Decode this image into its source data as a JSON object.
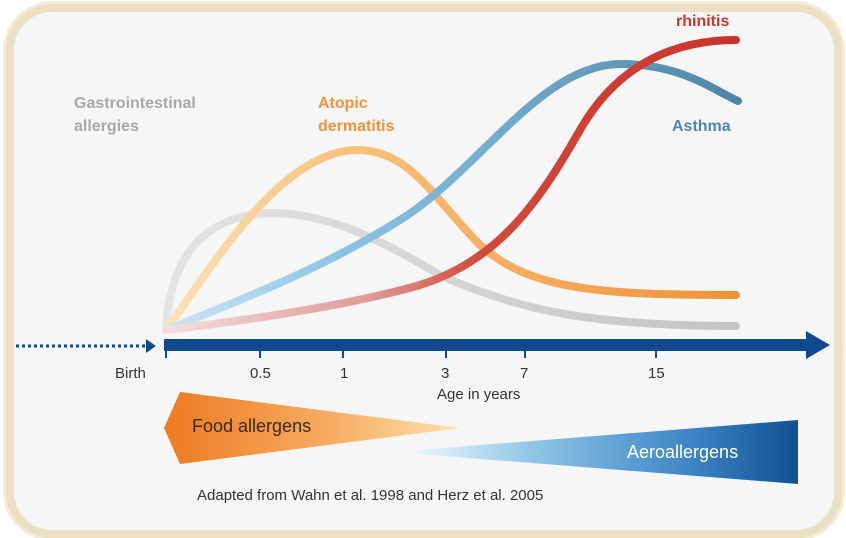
{
  "curves": [
    {
      "label_lines": [
        "Gastrointestinal",
        "allergies"
      ],
      "color": "#c9c9c9"
    },
    {
      "label_lines": [
        "Atopic",
        "dermatitis"
      ],
      "color": "#f0923a"
    },
    {
      "label_lines": [
        "Asthma"
      ],
      "color": "#5a90ad"
    },
    {
      "label_lines": [
        "rhinitis"
      ],
      "color": "#c9362b"
    }
  ],
  "axis": {
    "ticks": [
      "Birth",
      "0.5",
      "1",
      "3",
      "7",
      "15"
    ],
    "label": "Age in years"
  },
  "food_allergens": "Food allergens",
  "aeroallergens": "Aeroallergens",
  "citation": "Adapted from Wahn et al. 1998 and Herz et al. 2005"
}
